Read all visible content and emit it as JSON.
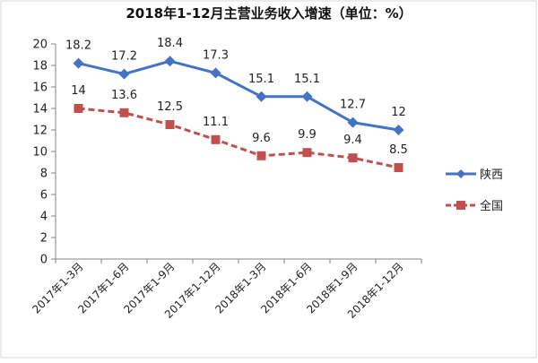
{
  "chart_data": {
    "type": "line",
    "title": "2018年1-12月主营业务收入增速（单位：%）",
    "categories": [
      "2017年1-3月",
      "2017年1-6月",
      "2017年1-9月",
      "2017年1-12月",
      "2018年1-3月",
      "2018年1-6月",
      "2018年1-9月",
      "2018年1-12月"
    ],
    "ylim": [
      0,
      20
    ],
    "yticks": [
      "0",
      "2",
      "4",
      "6",
      "8",
      "10",
      "12",
      "14",
      "16",
      "18",
      "20"
    ],
    "grid": false,
    "legend_position": "right",
    "series": [
      {
        "name": "陕西",
        "values": [
          18.2,
          17.2,
          18.4,
          17.3,
          15.1,
          15.1,
          12.7,
          12
        ],
        "labels": [
          "18.2",
          "17.2",
          "18.4",
          "17.3",
          "15.1",
          "15.1",
          "12.7",
          "12"
        ],
        "color": "#4472C4",
        "marker": "diamond",
        "line_style": "solid"
      },
      {
        "name": "全国",
        "values": [
          14,
          13.6,
          12.5,
          11.1,
          9.6,
          9.9,
          9.4,
          8.5
        ],
        "labels": [
          "14",
          "13.6",
          "12.5",
          "11.1",
          "9.6",
          "9.9",
          "9.4",
          "8.5"
        ],
        "color": "#C0504D",
        "marker": "square",
        "line_style": "dashed"
      }
    ]
  }
}
